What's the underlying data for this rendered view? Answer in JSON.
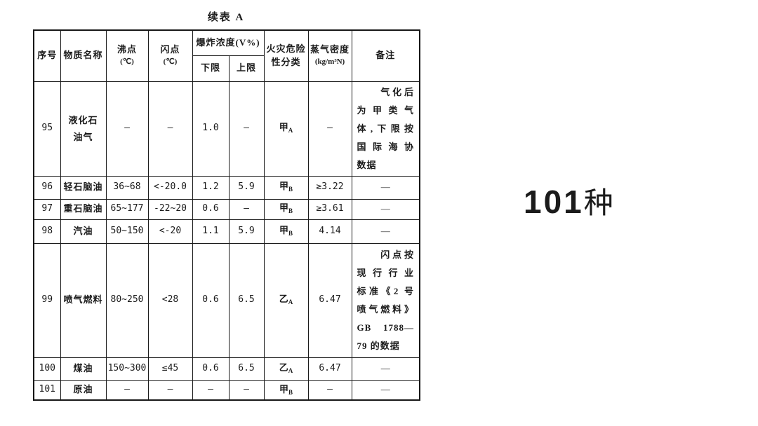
{
  "page": {
    "background": "#ffffff",
    "ink": "#1b1b1b"
  },
  "title": "续表 A",
  "side_note": {
    "number": "101",
    "unit": "种"
  },
  "table": {
    "header": {
      "no": "序号",
      "name": "物质名称",
      "boiling": [
        "沸点",
        "(℃)"
      ],
      "flash": [
        "闪点",
        "(℃)"
      ],
      "explosive": "爆炸浓度(V%)",
      "lel": "下限",
      "uel": "上限",
      "hazard": [
        "火灾危险",
        "性分类"
      ],
      "density": [
        "蒸气密度",
        "(kg/m³N)"
      ],
      "remark": "备注"
    },
    "rows": [
      {
        "no": "95",
        "name": [
          "液化石",
          "油气"
        ],
        "boiling": "—",
        "flash": "—",
        "lel": "1.0",
        "uel": "—",
        "class_main": "甲",
        "class_sub": "A",
        "density": "—",
        "remark": [
          "　　气化后",
          "为甲类气",
          "体,下限按",
          "国际海协",
          "数据"
        ]
      },
      {
        "no": "96",
        "name": "轻石脑油",
        "boiling": "36~68",
        "flash": "<-20.0",
        "lel": "1.2",
        "uel": "5.9",
        "class_main": "甲",
        "class_sub": "B",
        "density": "≥3.22",
        "remark": "—"
      },
      {
        "no": "97",
        "name": "重石脑油",
        "boiling": "65~177",
        "flash": "-22~20",
        "lel": "0.6",
        "uel": "—",
        "class_main": "甲",
        "class_sub": "B",
        "density": "≥3.61",
        "remark": "—"
      },
      {
        "no": "98",
        "name": "汽油",
        "boiling": "50~150",
        "flash": "<-20",
        "lel": "1.1",
        "uel": "5.9",
        "class_main": "甲",
        "class_sub": "B",
        "density": "4.14",
        "remark": "—"
      },
      {
        "no": "99",
        "name": "喷气燃料",
        "boiling": "80~250",
        "flash": "<28",
        "lel": "0.6",
        "uel": "6.5",
        "class_main": "乙",
        "class_sub": "A",
        "density": "6.47",
        "remark": [
          "　　闪点按",
          "现行行业",
          "标准《2 号",
          "喷气燃料》",
          "GB 1788—",
          "79 的数据"
        ]
      },
      {
        "no": "100",
        "name": "煤油",
        "boiling": "150~300",
        "flash": "≤45",
        "lel": "0.6",
        "uel": "6.5",
        "class_main": "乙",
        "class_sub": "A",
        "density": "6.47",
        "remark": "—"
      },
      {
        "no": "101",
        "name": "原油",
        "boiling": "—",
        "flash": "—",
        "lel": "—",
        "uel": "—",
        "class_main": "甲",
        "class_sub": "B",
        "density": "—",
        "remark": "—"
      }
    ]
  }
}
